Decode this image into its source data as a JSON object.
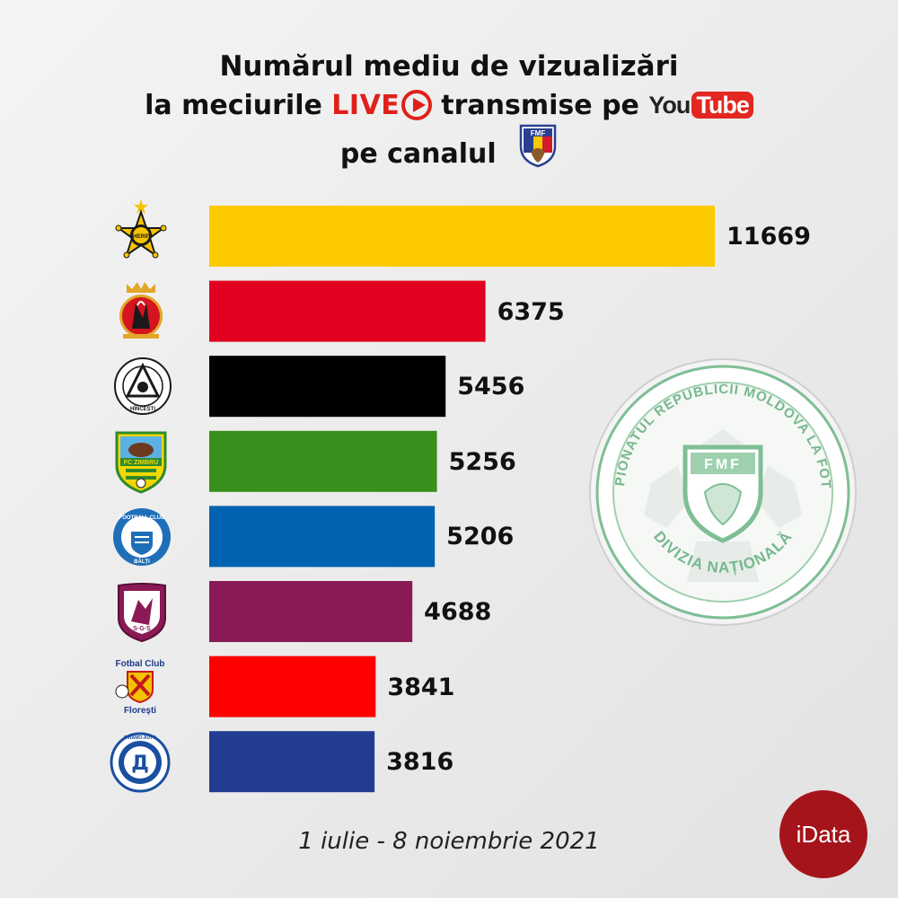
{
  "header": {
    "line1": "Numărul mediu de vizualizări",
    "line2_prefix": "la meciurile",
    "live_label": "LIVE",
    "line2_suffix": "transmise pe",
    "youtube_you": "You",
    "youtube_tube": "Tube",
    "line3_prefix": "pe canalul",
    "fmf_mini_text": "FMF"
  },
  "chart_data": {
    "type": "bar",
    "orientation": "horizontal",
    "categories": [
      "Sheriff",
      "Milsami",
      "Petrocub Hîncești",
      "FC Zimbru",
      "Football Club Bălți",
      "Sfântul Gheorghe",
      "Fotbal Club Florești",
      "Dinamo-Auto"
    ],
    "values": [
      11669,
      6375,
      5456,
      5256,
      5206,
      4688,
      3841,
      3816
    ],
    "value_labels": [
      "11669",
      "6375",
      "5456",
      "5256",
      "5206",
      "4688",
      "3841",
      "3816"
    ],
    "colors": [
      "#fdca00",
      "#e1001f",
      "#000000",
      "#3a8e1c",
      "#0062b0",
      "#8a1a55",
      "#fe0000",
      "#213c90"
    ],
    "xlim": [
      0,
      11669
    ],
    "grid": false,
    "legend": "none"
  },
  "logos": {
    "sheriff": "SHERIFF",
    "petrocub_text": "HÎNCEȘTI",
    "zimbru_text": "FC ZIMBRU",
    "balti_top": "FOOTBALL CLUB",
    "balti_bottom": "BĂLȚI",
    "sfgh_text": "S·G·S",
    "floresti_top": "Fotbal Club",
    "floresti_bottom": "Florești",
    "dinamo_ring": "DINAMO-AUTO",
    "dinamo_letter": "Д"
  },
  "badge": {
    "ring_top": "CAMPIONATUL REPUBLICII MOLDOVA LA FOTBAL",
    "ring_bottom": "DIVIZIA NAȚIONALĂ",
    "shield_text": "FMF"
  },
  "footer": {
    "date_range": "1 iulie - 8 noiembrie 2021",
    "brand": "iData"
  },
  "colors": {
    "live_red": "#e0201b",
    "youtube_red": "#e32620",
    "badge_green": "#6fb68a",
    "brand_red": "#a5141a"
  }
}
